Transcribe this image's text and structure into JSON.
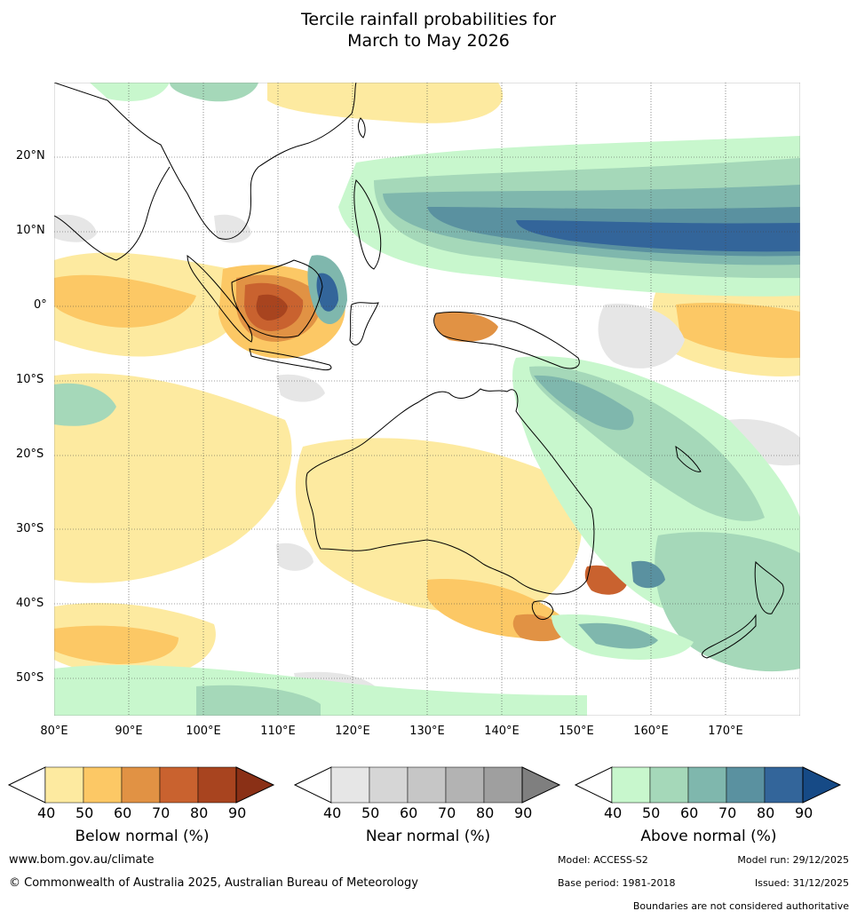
{
  "title": {
    "line1": "Tercile rainfall probabilities for",
    "line2": "March to May 2026"
  },
  "map": {
    "lat_labels": [
      "20°N",
      "10°N",
      "0°",
      "10°S",
      "20°S",
      "30°S",
      "40°S",
      "50°S"
    ],
    "lon_labels": [
      "80°E",
      "90°E",
      "100°E",
      "110°E",
      "120°E",
      "130°E",
      "140°E",
      "150°E",
      "160°E",
      "170°E"
    ],
    "extent": {
      "lon": [
        80,
        180
      ],
      "lat": [
        -55,
        30
      ]
    }
  },
  "legends": {
    "ticks": [
      "40",
      "50",
      "60",
      "70",
      "80",
      "90"
    ],
    "below": {
      "title": "Below normal (%)",
      "colors": [
        "#ffffff",
        "#fdeaa0",
        "#fcc865",
        "#e19244",
        "#c9622f",
        "#a8441f",
        "#8a3016"
      ]
    },
    "near": {
      "title": "Near normal (%)",
      "colors": [
        "#ffffff",
        "#e6e6e6",
        "#d6d6d6",
        "#c6c6c6",
        "#b3b3b3",
        "#9f9f9f",
        "#7f7f7f"
      ]
    },
    "above": {
      "title": "Above normal (%)",
      "colors": [
        "#ffffff",
        "#c8f7cd",
        "#a5d8b9",
        "#7fb7ad",
        "#5a91a0",
        "#33659a",
        "#164a86"
      ]
    }
  },
  "footer": {
    "website": "www.bom.gov.au/climate",
    "copyright": "© Commonwealth of Australia 2025, Australian Bureau of Meteorology",
    "model": "Model: ACCESS-S2",
    "model_run": "Model run: 29/12/2025",
    "base_period": "Base period: 1981-2018",
    "issued": "Issued: 31/12/2025",
    "disclaimer": "Boundaries are not considered authoritative"
  }
}
